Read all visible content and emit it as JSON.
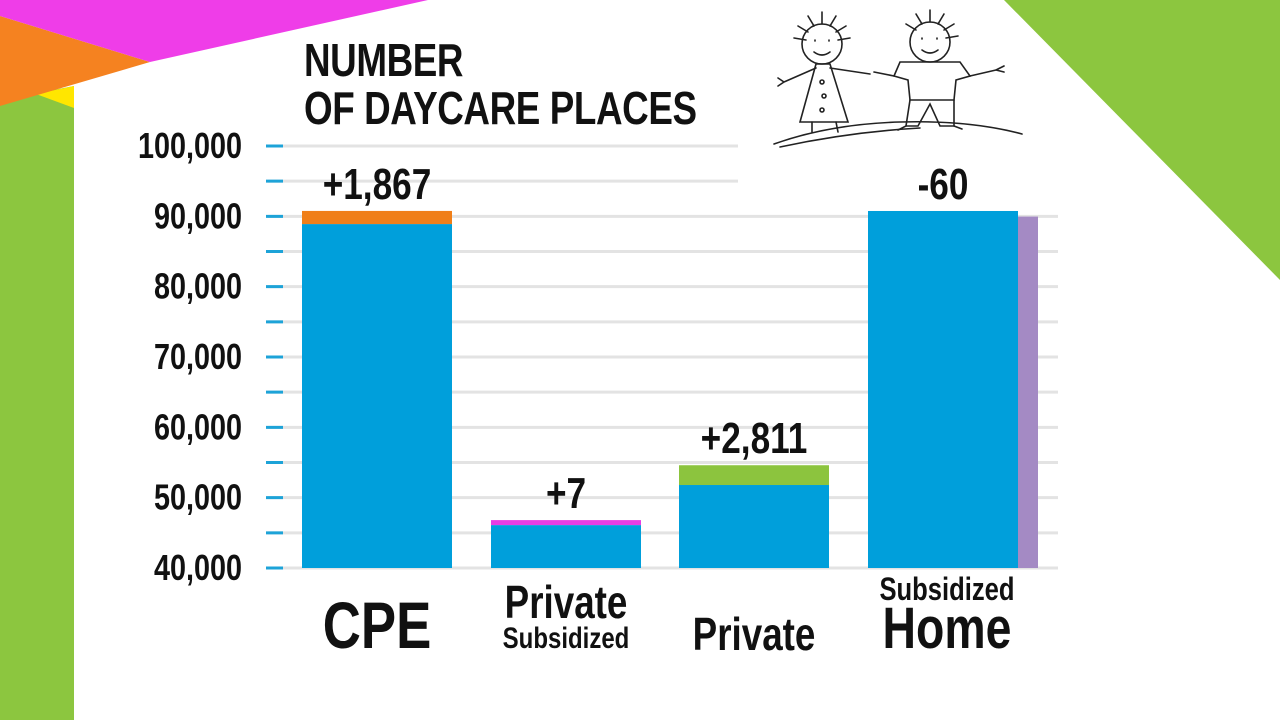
{
  "title_lines": [
    "NUMBER",
    "OF DAYCARE PLACES"
  ],
  "colors": {
    "base": "#009fdb",
    "cpe_change": "#f07f19",
    "private_subsidized_change": "#e83de4",
    "private_change": "#8cc43e",
    "home_change": "#a48ac4",
    "grid": "#e3e3e3",
    "tick": "#1da3d8",
    "deco_green": "#8cc63f",
    "deco_pink": "#ef3de8",
    "deco_orange": "#f58220",
    "deco_yellow": "#ffe600"
  },
  "chart_data": {
    "type": "bar",
    "title": "NUMBER OF DAYCARE PLACES",
    "ylim": [
      40000,
      100000
    ],
    "yticks": [
      {
        "value": 40000,
        "label": "40,000"
      },
      {
        "value": 50000,
        "label": "50,000"
      },
      {
        "value": 60000,
        "label": "60,000"
      },
      {
        "value": 70000,
        "label": "70,000"
      },
      {
        "value": 80000,
        "label": "80,000"
      },
      {
        "value": 90000,
        "label": "90,000"
      },
      {
        "value": 100000,
        "label": "100,000"
      }
    ],
    "grid": true,
    "bars": [
      {
        "key": "cpe",
        "label_lines": [
          "CPE"
        ],
        "base": 88900,
        "change": 1867,
        "change_label": "+1,867",
        "change_color_key": "cpe_change"
      },
      {
        "key": "private-subsidized",
        "label_lines": [
          "Private",
          "Subsidized"
        ],
        "base": 46100,
        "change": 7,
        "change_label": "+7",
        "change_color_key": "private_subsidized_change"
      },
      {
        "key": "private",
        "label_lines": [
          "Private"
        ],
        "base": 51800,
        "change": 2811,
        "change_label": "+2,811",
        "change_color_key": "private_change"
      },
      {
        "key": "subsidized-home",
        "label_lines": [
          "Subsidized",
          "Home"
        ],
        "base": 90760,
        "change": -60,
        "change_label": "-60",
        "change_color_key": "home_change"
      }
    ]
  }
}
